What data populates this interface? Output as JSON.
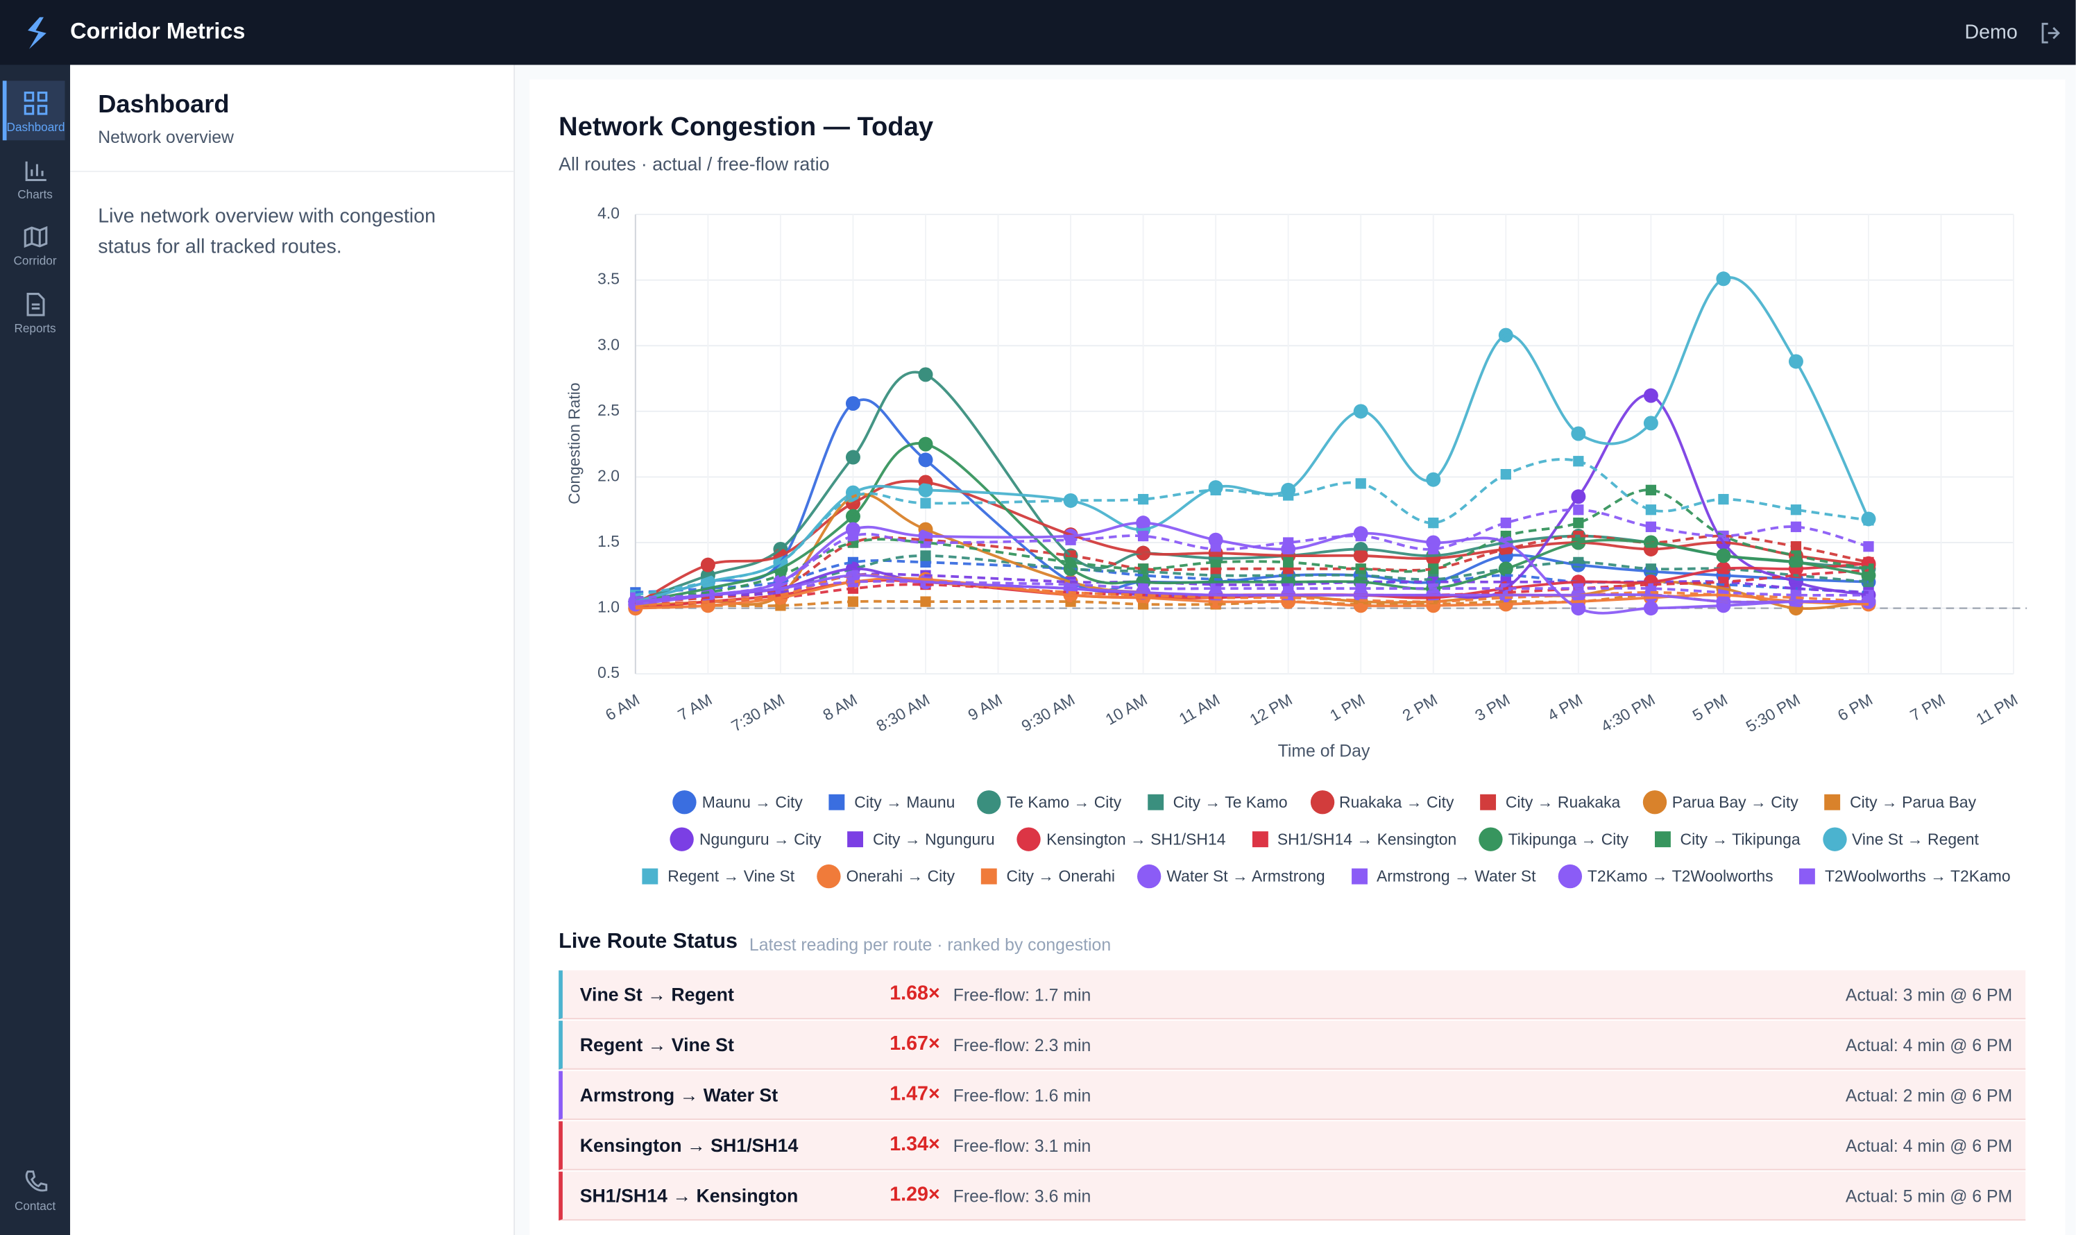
{
  "header": {
    "brand": "Corridor Metrics",
    "user": "Demo"
  },
  "nav": [
    "Dashboard",
    "Charts",
    "Corridor",
    "Reports",
    "Contact"
  ],
  "panel": {
    "title": "Dashboard",
    "subtitle": "Network overview",
    "description": "Live network overview with congestion status for all tracked routes."
  },
  "chart_data": {
    "type": "line",
    "title": "Network Congestion — Today",
    "subtitle": "All routes · actual / free-flow ratio",
    "x_label": "Time of Day",
    "y_label": "Congestion Ratio",
    "categories": [
      "6 AM",
      "7 AM",
      "7:30 AM",
      "8 AM",
      "8:30 AM",
      "9 AM",
      "9:30 AM",
      "10 AM",
      "11 AM",
      "12 PM",
      "1 PM",
      "2 PM",
      "3 PM",
      "4 PM",
      "4:30 PM",
      "5 PM",
      "5:30 PM",
      "6 PM",
      "7 PM",
      "11 PM"
    ],
    "ylim": [
      0.5,
      4.0
    ],
    "yticks": [
      0.5,
      {
        "value": 1,
        "label": "1.0"
      },
      1.5,
      {
        "value": 2,
        "label": "2.0"
      },
      2.5,
      {
        "value": 3,
        "label": "3.0"
      },
      3.5,
      {
        "value": 4,
        "label": "4.0"
      }
    ],
    "grid": true,
    "span_gaps": true,
    "baseline": 1,
    "series": [
      {
        "name": "Maunu → City",
        "color": "#3a6ee0",
        "marker": "circle",
        "dashed": false,
        "values": [
          1.05,
          1.2,
          1.35,
          2.56,
          2.13,
          null,
          1.2,
          1.2,
          1.2,
          1.25,
          1.25,
          1.2,
          1.4,
          1.33,
          1.28,
          1.25,
          1.22,
          1.2,
          null,
          null
        ]
      },
      {
        "name": "City → Maunu",
        "color": "#3a6ee0",
        "marker": "square",
        "dashed": true,
        "values": [
          1.12,
          1.15,
          1.2,
          1.35,
          1.35,
          null,
          1.3,
          1.25,
          1.22,
          1.2,
          1.2,
          1.2,
          1.25,
          1.2,
          1.2,
          1.18,
          1.15,
          1.12,
          null,
          null
        ]
      },
      {
        "name": "Te Kamo → City",
        "color": "#3a8f7e",
        "marker": "circle",
        "dashed": false,
        "values": [
          1.05,
          1.25,
          1.45,
          2.15,
          2.78,
          null,
          1.4,
          1.42,
          1.38,
          1.4,
          1.45,
          1.4,
          1.5,
          1.55,
          1.5,
          1.4,
          1.35,
          1.3,
          null,
          null
        ]
      },
      {
        "name": "City → Te Kamo",
        "color": "#3a8f7e",
        "marker": "square",
        "dashed": true,
        "values": [
          1.08,
          1.1,
          1.15,
          1.3,
          1.4,
          null,
          1.3,
          1.28,
          1.25,
          1.25,
          1.25,
          1.22,
          1.3,
          1.35,
          1.3,
          1.3,
          1.25,
          1.2,
          null,
          null
        ]
      },
      {
        "name": "Ruakaka → City",
        "color": "#d23c3c",
        "marker": "circle",
        "dashed": false,
        "values": [
          1.03,
          1.33,
          1.4,
          1.8,
          1.96,
          null,
          1.56,
          1.42,
          1.42,
          1.4,
          1.4,
          1.38,
          1.45,
          1.5,
          1.45,
          1.5,
          1.4,
          1.33,
          null,
          null
        ]
      },
      {
        "name": "City → Ruakaka",
        "color": "#d23c3c",
        "marker": "square",
        "dashed": true,
        "values": [
          1.05,
          1.08,
          1.15,
          1.5,
          1.52,
          null,
          1.4,
          1.3,
          1.3,
          1.3,
          1.3,
          1.3,
          1.45,
          1.55,
          1.5,
          1.55,
          1.47,
          1.35,
          null,
          null
        ]
      },
      {
        "name": "Parua Bay → City",
        "color": "#d9822b",
        "marker": "circle",
        "dashed": false,
        "values": [
          1.02,
          1.05,
          1.1,
          1.85,
          1.6,
          null,
          1.2,
          1.12,
          1.1,
          1.1,
          1.05,
          1.05,
          1.1,
          1.1,
          1.2,
          1.15,
          1.0,
          1.05,
          null,
          null
        ]
      },
      {
        "name": "City → Parua Bay",
        "color": "#d9822b",
        "marker": "square",
        "dashed": true,
        "values": [
          1.02,
          1.02,
          1.02,
          1.05,
          1.05,
          null,
          1.05,
          1.03,
          1.03,
          1.05,
          1.03,
          1.03,
          1.05,
          1.05,
          1.1,
          1.05,
          1.05,
          1.03,
          null,
          null
        ]
      },
      {
        "name": "Ngunguru → City",
        "color": "#7b3fe4",
        "marker": "circle",
        "dashed": false,
        "values": [
          1.05,
          1.1,
          1.15,
          1.3,
          1.2,
          null,
          1.15,
          1.1,
          1.1,
          1.1,
          1.1,
          1.1,
          1.15,
          1.85,
          2.62,
          1.5,
          1.2,
          1.1,
          null,
          null
        ]
      },
      {
        "name": "City → Ngunguru",
        "color": "#7b3fe4",
        "marker": "square",
        "dashed": true,
        "values": [
          1.08,
          1.1,
          1.12,
          1.25,
          1.25,
          null,
          1.2,
          1.2,
          1.18,
          1.18,
          1.2,
          1.2,
          1.2,
          1.2,
          1.2,
          1.2,
          1.15,
          1.12,
          null,
          null
        ]
      },
      {
        "name": "Kensington → SH1/SH14",
        "color": "#dc3545",
        "marker": "circle",
        "dashed": false,
        "values": [
          1.0,
          1.05,
          1.1,
          1.2,
          1.2,
          null,
          1.1,
          1.08,
          1.08,
          1.1,
          1.1,
          1.08,
          1.15,
          1.2,
          1.2,
          1.3,
          1.3,
          1.34,
          null,
          null
        ]
      },
      {
        "name": "SH1/SH14 → Kensington",
        "color": "#dc3545",
        "marker": "square",
        "dashed": true,
        "values": [
          1.03,
          1.05,
          1.08,
          1.15,
          1.18,
          null,
          1.12,
          1.1,
          1.1,
          1.1,
          1.1,
          1.1,
          1.12,
          1.15,
          1.18,
          1.2,
          1.25,
          1.29,
          null,
          null
        ]
      },
      {
        "name": "Tikipunga → City",
        "color": "#37955e",
        "marker": "circle",
        "dashed": false,
        "values": [
          1.05,
          1.15,
          1.3,
          1.7,
          2.25,
          null,
          1.3,
          1.2,
          1.2,
          1.2,
          1.2,
          1.15,
          1.3,
          1.5,
          1.5,
          1.4,
          1.35,
          1.25,
          null,
          null
        ]
      },
      {
        "name": "City → Tikipunga",
        "color": "#37955e",
        "marker": "square",
        "dashed": true,
        "values": [
          1.08,
          1.12,
          1.25,
          1.5,
          1.5,
          null,
          1.35,
          1.3,
          1.35,
          1.35,
          1.3,
          1.3,
          1.55,
          1.65,
          1.9,
          1.55,
          1.4,
          1.3,
          null,
          null
        ]
      },
      {
        "name": "Vine St → Regent",
        "color": "#4bb3cf",
        "marker": "circle",
        "dashed": false,
        "values": [
          1.05,
          1.2,
          1.35,
          1.88,
          1.9,
          null,
          1.82,
          1.6,
          1.92,
          1.9,
          2.5,
          1.98,
          3.08,
          2.33,
          2.41,
          3.51,
          2.88,
          1.68,
          null,
          null
        ]
      },
      {
        "name": "Regent → Vine St",
        "color": "#4bb3cf",
        "marker": "square",
        "dashed": true,
        "values": [
          1.1,
          1.2,
          1.35,
          1.85,
          1.8,
          null,
          1.82,
          1.83,
          1.9,
          1.86,
          1.95,
          1.65,
          2.02,
          2.12,
          1.75,
          1.83,
          1.75,
          1.67,
          null,
          null
        ]
      },
      {
        "name": "Onerahi → City",
        "color": "#f07b3a",
        "marker": "circle",
        "dashed": false,
        "values": [
          1.0,
          1.02,
          1.08,
          1.2,
          1.22,
          null,
          1.1,
          1.08,
          1.05,
          1.05,
          1.02,
          1.02,
          1.03,
          1.05,
          1.08,
          1.1,
          1.05,
          1.03,
          null,
          null
        ]
      },
      {
        "name": "City → Onerahi",
        "color": "#f07b3a",
        "marker": "square",
        "dashed": true,
        "values": [
          1.02,
          1.05,
          1.1,
          1.25,
          1.2,
          null,
          1.12,
          1.1,
          1.08,
          1.08,
          1.06,
          1.05,
          1.08,
          1.1,
          1.12,
          1.1,
          1.08,
          1.05,
          null,
          null
        ]
      },
      {
        "name": "Water St → Armstrong",
        "color": "#8b5cf6",
        "marker": "circle",
        "dashed": false,
        "values": [
          1.03,
          1.1,
          1.2,
          1.6,
          1.55,
          null,
          1.55,
          1.65,
          1.52,
          1.45,
          1.57,
          1.5,
          1.5,
          1.0,
          1.0,
          1.02,
          1.05,
          1.05,
          null,
          null
        ]
      },
      {
        "name": "Armstrong → Water St",
        "color": "#8b5cf6",
        "marker": "square",
        "dashed": true,
        "values": [
          1.05,
          1.1,
          1.2,
          1.55,
          1.5,
          null,
          1.52,
          1.55,
          1.45,
          1.5,
          1.55,
          1.45,
          1.65,
          1.75,
          1.62,
          1.55,
          1.62,
          1.47,
          null,
          null
        ]
      },
      {
        "name": "T2Kamo → T2Woolworths",
        "color": "#8b5cf6",
        "marker": "circle",
        "dashed": false,
        "values": [
          1.05,
          1.1,
          1.15,
          1.25,
          1.2,
          null,
          1.15,
          1.12,
          1.1,
          1.1,
          1.1,
          1.1,
          1.1,
          1.1,
          1.1,
          1.05,
          1.05,
          1.05,
          null,
          null
        ]
      },
      {
        "name": "T2Woolworths → T2Kamo",
        "color": "#8b5cf6",
        "marker": "square",
        "dashed": true,
        "values": [
          1.08,
          1.1,
          1.15,
          1.2,
          1.2,
          null,
          1.18,
          1.15,
          1.15,
          1.15,
          1.15,
          1.15,
          1.15,
          1.15,
          1.15,
          1.12,
          1.1,
          1.1,
          null,
          null
        ]
      }
    ]
  },
  "status": {
    "title": "Live Route Status",
    "subtitle": "Latest reading per route · ranked by congestion",
    "rows": [
      {
        "route": "Vine St → Regent",
        "ratio": "1.68×",
        "free_flow": "Free-flow: 1.7 min",
        "actual": "Actual: 3 min @ 6 PM",
        "color": "#4bb3cf"
      },
      {
        "route": "Regent → Vine St",
        "ratio": "1.67×",
        "free_flow": "Free-flow: 2.3 min",
        "actual": "Actual: 4 min @ 6 PM",
        "color": "#4bb3cf"
      },
      {
        "route": "Armstrong → Water St",
        "ratio": "1.47×",
        "free_flow": "Free-flow: 1.6 min",
        "actual": "Actual: 2 min @ 6 PM",
        "color": "#8b5cf6"
      },
      {
        "route": "Kensington → SH1/SH14",
        "ratio": "1.34×",
        "free_flow": "Free-flow: 3.1 min",
        "actual": "Actual: 4 min @ 6 PM",
        "color": "#dc3545"
      },
      {
        "route": "SH1/SH14 → Kensington",
        "ratio": "1.29×",
        "free_flow": "Free-flow: 3.6 min",
        "actual": "Actual: 5 min @ 6 PM",
        "color": "#dc3545"
      }
    ]
  }
}
